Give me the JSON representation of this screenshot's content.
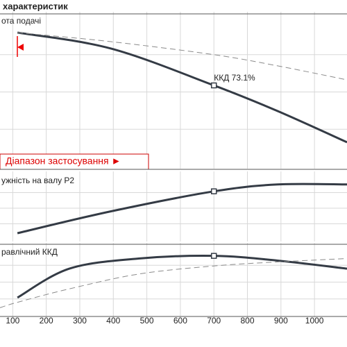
{
  "title": "характеристик",
  "range_label": "Діапазон застосування ►",
  "chart_data": [
    {
      "type": "line",
      "label": "ота подачі",
      "annotation": "ККД   73.1%",
      "xlim": [
        62,
        1097
      ],
      "ylim": [
        0,
        100
      ],
      "x": [
        114,
        393,
        700,
        890,
        1097
      ],
      "series": [
        {
          "color": "#343b45",
          "dash": false,
          "values": [
            89.8,
            79.1,
            54.4,
            37.2,
            16.3
          ]
        },
        {
          "color": "#8a8a8a",
          "dash": true,
          "values": [
            89.8,
            83.7,
            75.0,
            67.5,
            58.1
          ]
        }
      ]
    },
    {
      "type": "line",
      "label": "ужність на валу P2",
      "xlim": [
        62,
        1097
      ],
      "ylim": [
        0,
        100
      ],
      "x": [
        114,
        393,
        700,
        890,
        1097
      ],
      "series": [
        {
          "color": "#343b45",
          "dash": false,
          "values": [
            10,
            45,
            77,
            88,
            88
          ]
        }
      ]
    },
    {
      "type": "line",
      "label": "равлічний ККД",
      "xlim": [
        62,
        1097
      ],
      "ylim": [
        0,
        100
      ],
      "x": [
        62,
        114,
        269,
        476,
        700,
        890,
        1097
      ],
      "series": [
        {
          "color": "#343b45",
          "dash": false,
          "values": [
            null,
            27,
            70,
            85,
            89,
            82,
            70
          ]
        },
        {
          "color": "#8a8a8a",
          "dash": true,
          "values": [
            12,
            20,
            40,
            62,
            74,
            80,
            85
          ]
        }
      ],
      "xticks": [
        100,
        200,
        300,
        400,
        500,
        600,
        700,
        800,
        900,
        1000
      ]
    }
  ]
}
